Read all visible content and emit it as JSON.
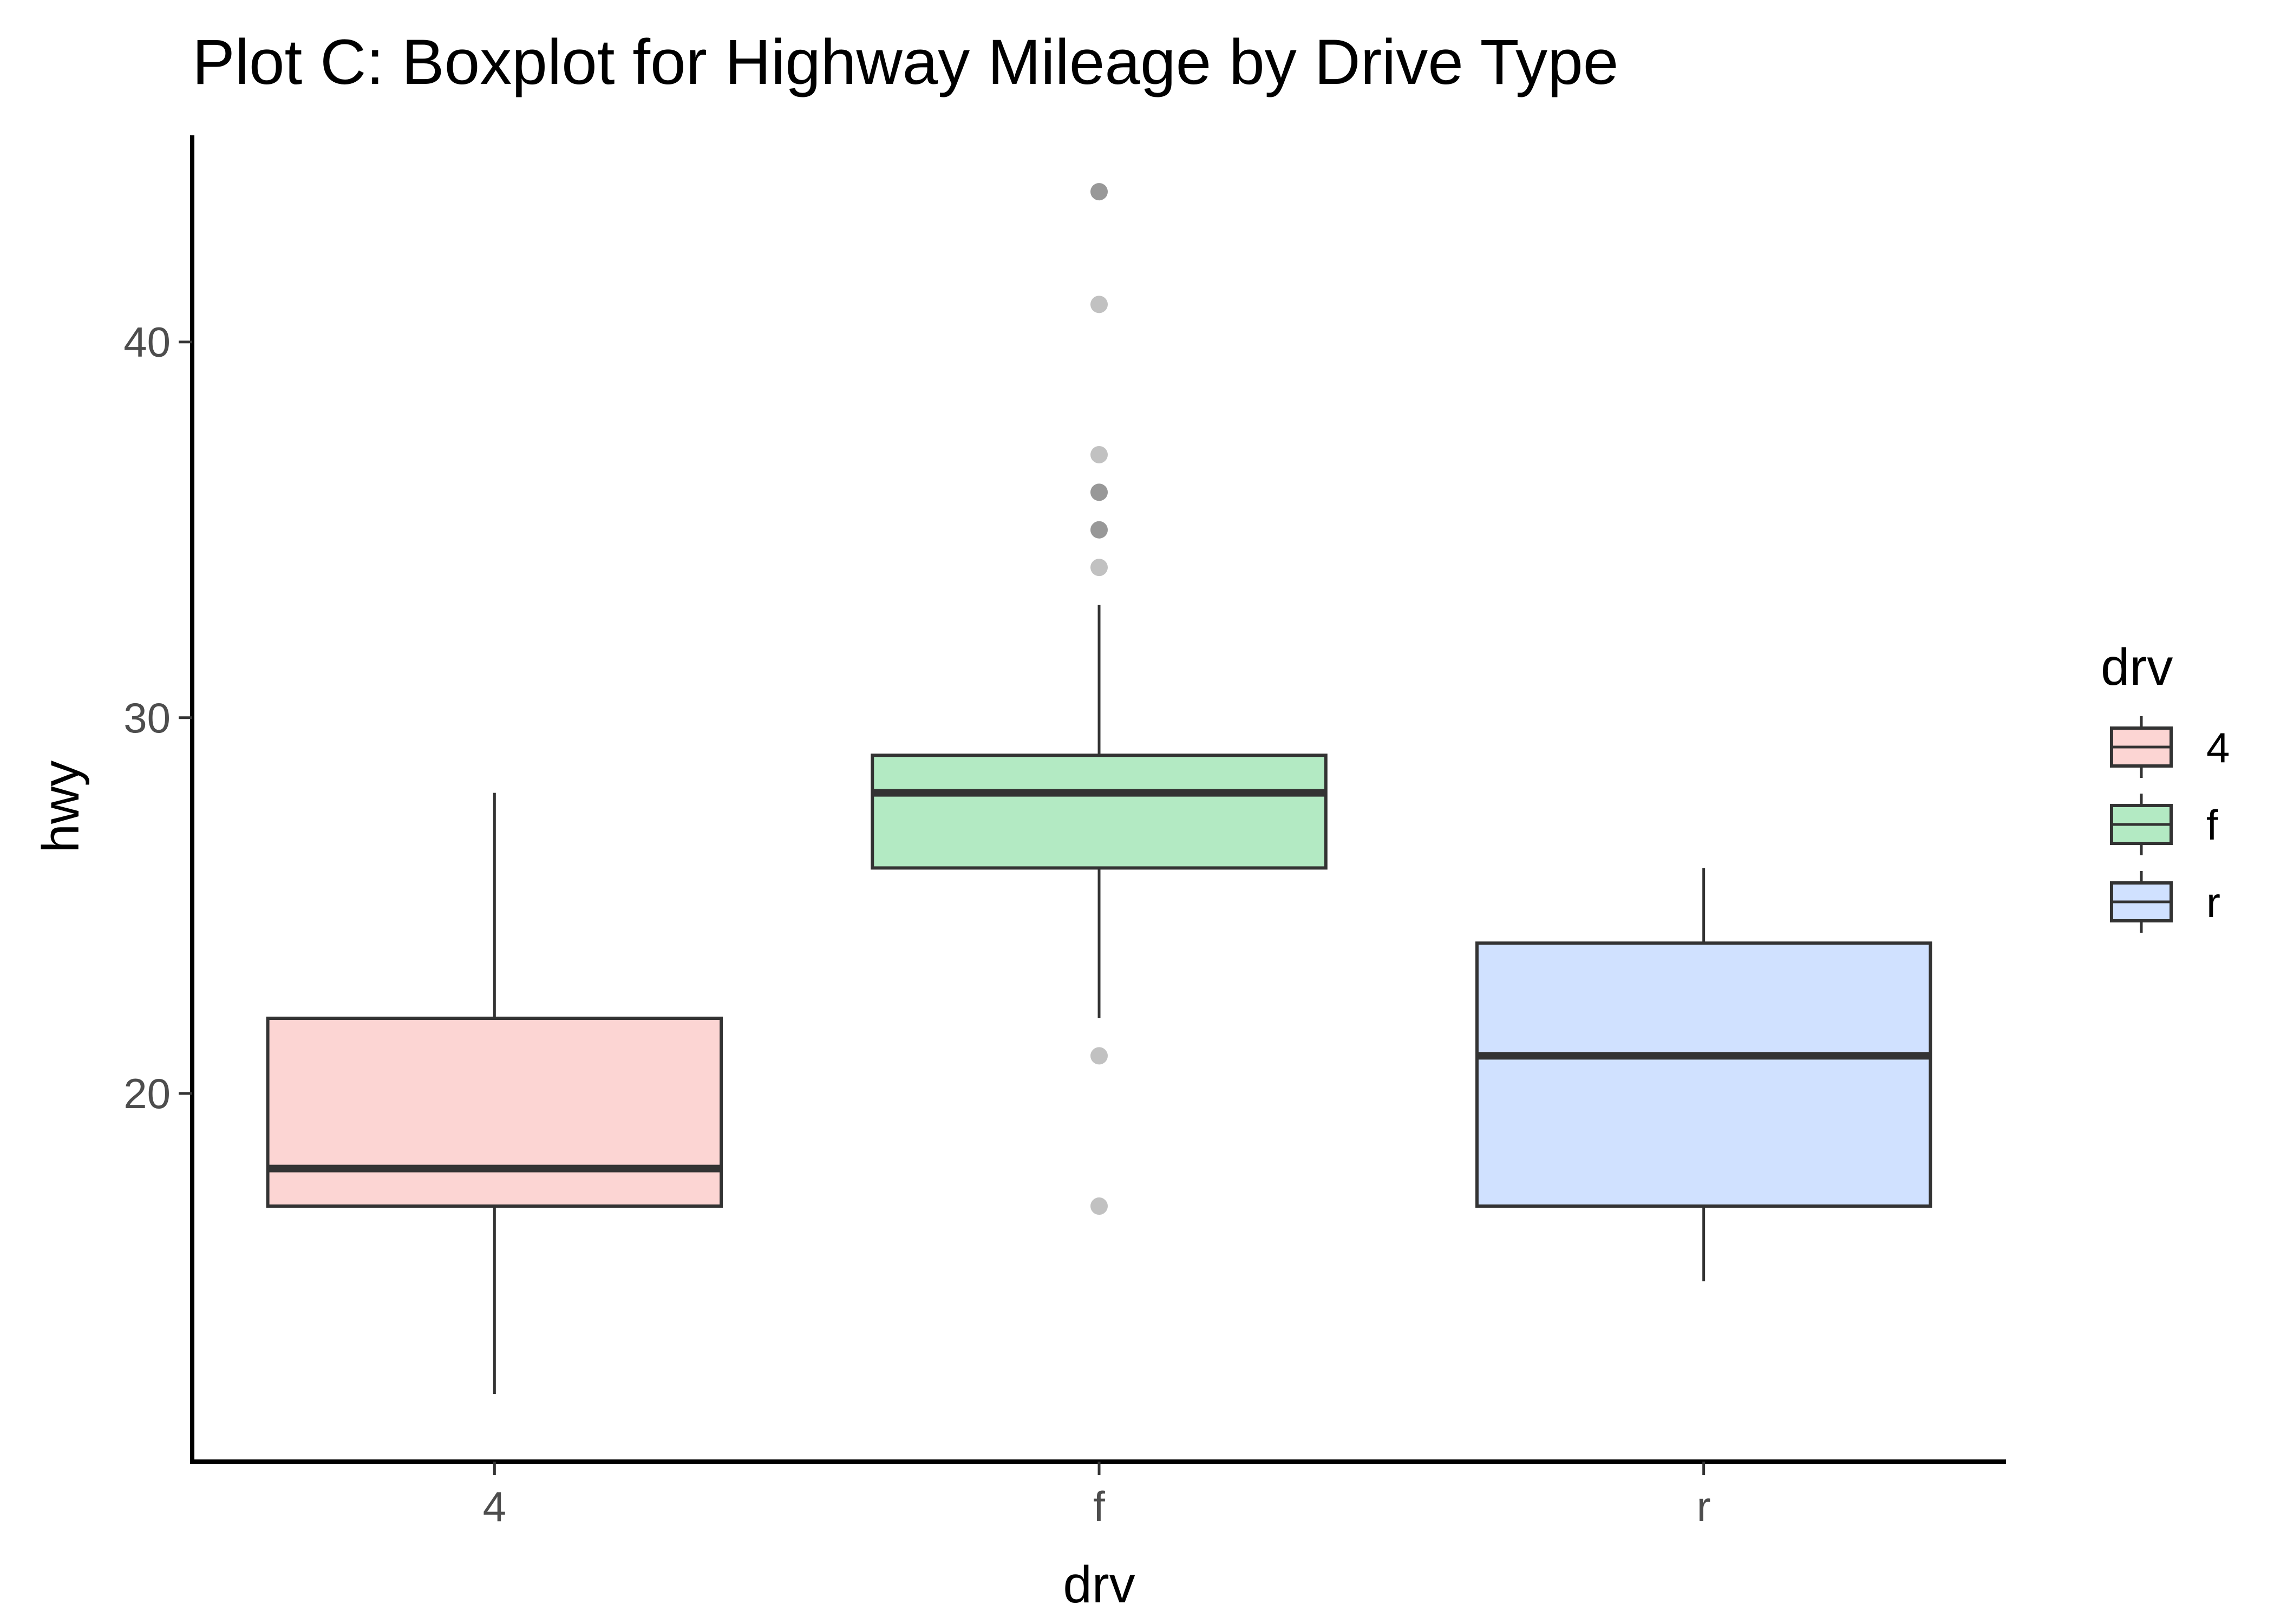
{
  "chart_data": {
    "type": "boxplot",
    "title": "Plot C: Boxplot for Highway Mileage by Drive  Type",
    "xlabel": "drv",
    "ylabel": "hwy",
    "ylim": [
      10.2,
      45.5
    ],
    "yticks": [
      20,
      30,
      40
    ],
    "grid": false,
    "legend": {
      "title": "drv",
      "placement": "right"
    },
    "categories": [
      "4",
      "f",
      "r"
    ],
    "series": [
      {
        "name": "4",
        "color": "#F8766D",
        "fill": "#FCD5D3",
        "whisker_low": 12,
        "q1": 17,
        "median": 18,
        "q3": 22,
        "whisker_high": 28,
        "outliers": []
      },
      {
        "name": "f",
        "color": "#00BA38",
        "fill": "#B3EAC3",
        "whisker_low": 22,
        "q1": 26,
        "median": 28,
        "q3": 29,
        "whisker_high": 33,
        "outliers": [
          17,
          21,
          34,
          35,
          35,
          36,
          36,
          37,
          41,
          44,
          44
        ]
      },
      {
        "name": "r",
        "color": "#619CFF",
        "fill": "#D0E1FF",
        "whisker_low": 15,
        "q1": 17,
        "median": 21,
        "q3": 24,
        "whisker_high": 26,
        "outliers": []
      }
    ]
  }
}
